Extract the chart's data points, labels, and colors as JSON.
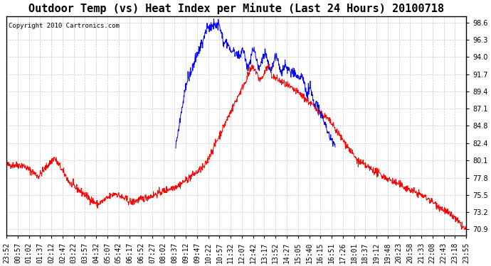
{
  "title": "Outdoor Temp (vs) Heat Index per Minute (Last 24 Hours) 20100718",
  "copyright": "Copyright 2010 Cartronics.com",
  "y_ticks": [
    70.9,
    73.2,
    75.5,
    77.8,
    80.1,
    82.4,
    84.8,
    87.1,
    89.4,
    91.7,
    94.0,
    96.3,
    98.6
  ],
  "x_labels": [
    "23:52",
    "00:57",
    "01:02",
    "01:37",
    "02:12",
    "02:47",
    "03:22",
    "03:57",
    "04:32",
    "05:07",
    "05:42",
    "06:17",
    "06:52",
    "07:27",
    "08:02",
    "08:37",
    "09:12",
    "09:47",
    "10:22",
    "10:57",
    "11:32",
    "12:07",
    "12:42",
    "13:17",
    "13:52",
    "14:27",
    "15:05",
    "15:40",
    "16:15",
    "16:51",
    "17:26",
    "18:01",
    "18:37",
    "19:12",
    "19:48",
    "20:23",
    "20:58",
    "21:33",
    "22:08",
    "22:43",
    "23:18",
    "23:55"
  ],
  "bg_color": "#ffffff",
  "grid_color": "#c8c8c8",
  "line_color_red": "#ff0000",
  "line_color_blue": "#0000ff",
  "title_fontsize": 11,
  "copyright_fontsize": 6.5,
  "tick_fontsize": 7,
  "ylim_min": 70.0,
  "ylim_max": 99.5,
  "n_points": 1440
}
